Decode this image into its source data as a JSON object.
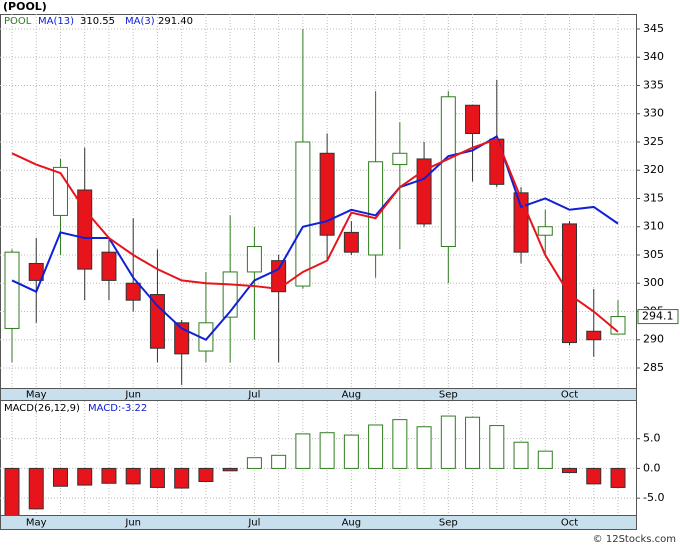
{
  "chart_data": {
    "type": "candlestick",
    "title": "(POOL)",
    "footer": "© 12Stocks.com",
    "ticker": "POOL",
    "categories": [
      null,
      "May",
      null,
      null,
      null,
      "Jun",
      null,
      null,
      null,
      null,
      "Jul",
      null,
      null,
      null,
      "Aug",
      null,
      null,
      null,
      "Sep",
      null,
      null,
      null,
      null,
      "Oct",
      null,
      null
    ],
    "open": [
      292,
      303.5,
      312,
      316.5,
      305.5,
      300,
      298,
      293,
      288,
      294,
      302,
      304,
      299.5,
      323,
      309,
      305,
      321,
      322,
      306.5,
      331.5,
      325.5,
      316,
      308.5,
      310.5,
      291.5,
      291
    ],
    "high": [
      306,
      308,
      322,
      324,
      308,
      311.5,
      306,
      293.5,
      302,
      312,
      310,
      305,
      345,
      326.5,
      311,
      334,
      328.5,
      325,
      334,
      331.5,
      336,
      317,
      313,
      311,
      299,
      297
    ],
    "low": [
      286,
      293,
      305,
      297,
      297,
      295,
      286,
      282,
      286,
      286,
      290,
      286,
      299,
      304,
      305,
      301,
      306,
      310,
      300,
      318,
      317,
      303.5,
      305,
      289,
      287,
      291
    ],
    "close": [
      305.5,
      300.5,
      320.5,
      302.5,
      300.5,
      297,
      288.5,
      287.5,
      293,
      302,
      306.5,
      298.5,
      325,
      308.5,
      305.5,
      321.5,
      323,
      310.5,
      333,
      326.5,
      317.5,
      305.5,
      310,
      289.5,
      290,
      294.1
    ],
    "up_color": "#2e7d1e",
    "down_color": "#e8141b",
    "series": [
      {
        "name": "MA(13)",
        "value_label": "310.55",
        "color": "#1020d8",
        "values": [
          300.5,
          298.5,
          309,
          308,
          308,
          301,
          296,
          292,
          290,
          295,
          300.5,
          302.5,
          310,
          311,
          313,
          312,
          317,
          318.5,
          322.5,
          323.5,
          326,
          313.5,
          315,
          313,
          313.5,
          310.55
        ]
      },
      {
        "name": "MA(3)",
        "value_label": "291.40",
        "color": "#e8141b",
        "values": [
          323,
          321,
          319.5,
          313,
          308,
          305,
          302.5,
          300.5,
          300,
          299.8,
          299.5,
          299,
          302,
          304,
          312.5,
          311.5,
          317,
          320,
          322,
          324,
          325.5,
          315,
          305,
          298,
          295,
          291.4
        ]
      }
    ],
    "ylim": [
      281.46,
      347.65
    ],
    "yticks": [
      285,
      290,
      295,
      300,
      305,
      310,
      315,
      320,
      325,
      330,
      335,
      340,
      345
    ],
    "grid": true,
    "macd": {
      "name": "MACD(26,12,9)",
      "label": "MACD:-3.22",
      "values": [
        -8,
        -6.8,
        -3,
        -2.8,
        -2.5,
        -2.6,
        -3.2,
        -3.3,
        -2.2,
        -0.4,
        1.8,
        2.2,
        5.8,
        6,
        5.6,
        7.3,
        8.2,
        7,
        8.8,
        8.6,
        7.2,
        4.4,
        2.9,
        -0.7,
        -2.6,
        -3.2
      ],
      "ylim": [
        -7.83,
        11.33
      ],
      "yticks": [
        {
          "value": 5,
          "label": "5.0"
        },
        {
          "value": 0,
          "label": "0.0"
        },
        {
          "value": -5,
          "label": "-5.0"
        }
      ]
    }
  }
}
